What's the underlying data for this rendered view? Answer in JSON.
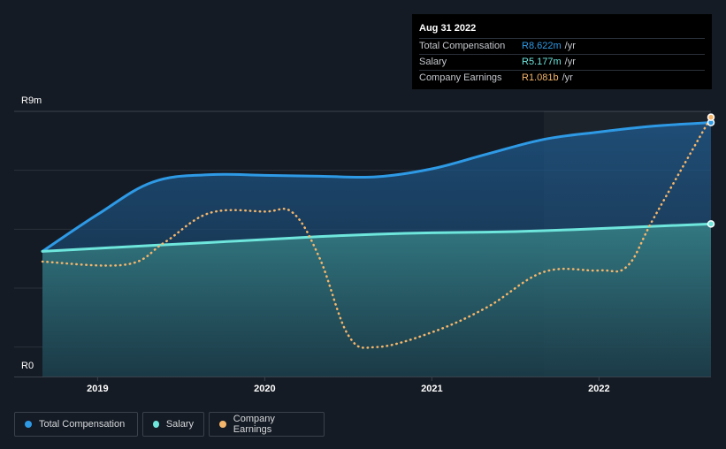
{
  "tooltip": {
    "date": "Aug 31 2022",
    "rows": [
      {
        "label": "Total Compensation",
        "value": "R8.622m",
        "unit": "/yr",
        "color": "#2e9ae6"
      },
      {
        "label": "Salary",
        "value": "R5.177m",
        "unit": "/yr",
        "color": "#6ee6dc"
      },
      {
        "label": "Company Earnings",
        "value": "R1.081b",
        "unit": "/yr",
        "color": "#f5b66b"
      }
    ]
  },
  "legend": [
    {
      "label": "Total Compensation",
      "color": "#2e9ae6"
    },
    {
      "label": "Salary",
      "color": "#6ee6dc"
    },
    {
      "label": "Company Earnings",
      "color": "#f5b66b"
    }
  ],
  "chart_data": {
    "type": "line",
    "title": "",
    "ylabel_top": "R9m",
    "ylabel_bottom": "R0",
    "ylim": [
      0,
      9
    ],
    "xlim": [
      2018.67,
      2022.67
    ],
    "x_ticks": [
      2019,
      2020,
      2021,
      2022
    ],
    "x_tick_labels": [
      "2019",
      "2020",
      "2021",
      "2022"
    ],
    "series": [
      {
        "name": "Total Compensation",
        "color": "#2e9ae6",
        "style": "solid",
        "points": [
          [
            2018.67,
            4.25
          ],
          [
            2019.0,
            5.5
          ],
          [
            2019.33,
            6.6
          ],
          [
            2019.67,
            6.85
          ],
          [
            2020.0,
            6.83
          ],
          [
            2020.33,
            6.8
          ],
          [
            2020.67,
            6.78
          ],
          [
            2021.0,
            7.05
          ],
          [
            2021.33,
            7.55
          ],
          [
            2021.67,
            8.05
          ],
          [
            2022.0,
            8.3
          ],
          [
            2022.33,
            8.5
          ],
          [
            2022.67,
            8.62
          ]
        ]
      },
      {
        "name": "Salary",
        "color": "#6ee6dc",
        "style": "solid",
        "points": [
          [
            2018.67,
            4.25
          ],
          [
            2019.0,
            4.35
          ],
          [
            2019.33,
            4.45
          ],
          [
            2019.67,
            4.55
          ],
          [
            2020.0,
            4.65
          ],
          [
            2020.33,
            4.75
          ],
          [
            2020.67,
            4.83
          ],
          [
            2021.0,
            4.88
          ],
          [
            2021.33,
            4.9
          ],
          [
            2021.67,
            4.95
          ],
          [
            2022.0,
            5.02
          ],
          [
            2022.33,
            5.1
          ],
          [
            2022.67,
            5.18
          ]
        ]
      },
      {
        "name": "Company Earnings",
        "color": "#f5b66b",
        "style": "dotted",
        "axis": "separate",
        "points": [
          [
            2018.67,
            3.9
          ],
          [
            2019.17,
            3.8
          ],
          [
            2019.4,
            4.55
          ],
          [
            2019.67,
            5.55
          ],
          [
            2020.0,
            5.6
          ],
          [
            2020.17,
            5.55
          ],
          [
            2020.33,
            4.0
          ],
          [
            2020.5,
            1.4
          ],
          [
            2020.67,
            1.0
          ],
          [
            2021.0,
            1.5
          ],
          [
            2021.33,
            2.35
          ],
          [
            2021.67,
            3.55
          ],
          [
            2022.0,
            3.6
          ],
          [
            2022.17,
            3.75
          ],
          [
            2022.33,
            5.4
          ],
          [
            2022.67,
            8.8
          ]
        ]
      }
    ],
    "highlight_x": 2022.67,
    "forecast_start_x": 2021.67
  }
}
